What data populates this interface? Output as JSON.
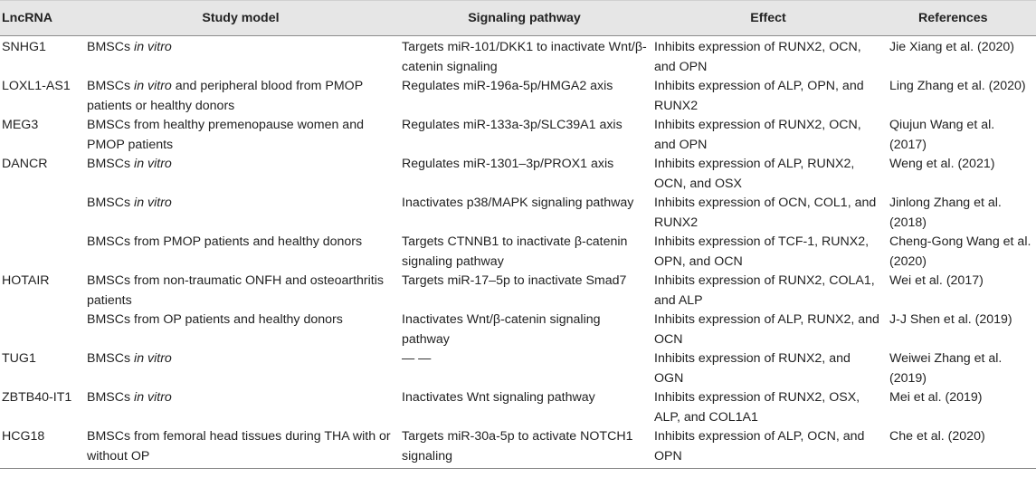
{
  "headers": {
    "lncrna": "LncRNA",
    "model": "Study model",
    "pathway": "Signaling pathway",
    "effect": "Effect",
    "refs": "References"
  },
  "rows": [
    {
      "lncrna": "SNHG1",
      "model": "BMSCs",
      "model_em": " in vitro",
      "model_rest": "",
      "pathway": "Targets miR-101/DKK1 to inactivate Wnt/β-catenin signaling",
      "effect": "Inhibits expression of RUNX2, OCN, and OPN",
      "ref": "Jie Xiang et al. (2020)"
    },
    {
      "lncrna": "LOXL1-AS1",
      "model": "BMSCs",
      "model_em": " in vitro",
      "model_rest": " and peripheral blood from PMOP patients or healthy donors",
      "pathway": "Regulates miR-196a-5p/HMGA2 axis",
      "effect": "Inhibits expression of ALP, OPN, and RUNX2",
      "ref": "Ling Zhang et al. (2020)"
    },
    {
      "lncrna": "MEG3",
      "model": "BMSCs from healthy premenopause women and PMOP patients",
      "model_em": "",
      "model_rest": "",
      "pathway": "Regulates miR-133a-3p/SLC39A1 axis",
      "effect": "Inhibits expression of RUNX2, OCN, and OPN",
      "ref": "Qiujun Wang et al. (2017)"
    },
    {
      "lncrna": "DANCR",
      "model": "BMSCs",
      "model_em": " in vitro",
      "model_rest": "",
      "pathway": "Regulates miR-1301–3p/PROX1 axis",
      "effect": "Inhibits expression of ALP, RUNX2, OCN, and OSX",
      "ref": "Weng et al. (2021)"
    },
    {
      "lncrna": "",
      "model": "BMSCs",
      "model_em": " in vitro",
      "model_rest": "",
      "pathway": "Inactivates p38/MAPK signaling pathway",
      "effect": "Inhibits expression of OCN, COL1, and RUNX2",
      "ref": "Jinlong Zhang et al. (2018)"
    },
    {
      "lncrna": "",
      "model": "BMSCs from PMOP patients and healthy donors",
      "model_em": "",
      "model_rest": "",
      "pathway": "Targets CTNNB1 to inactivate β-catenin signaling pathway",
      "effect": "Inhibits expression of TCF-1, RUNX2, OPN, and OCN",
      "ref": "Cheng-Gong Wang et al. (2020)"
    },
    {
      "lncrna": "HOTAIR",
      "model": "BMSCs from non-traumatic ONFH and osteoarthritis patients",
      "model_em": "",
      "model_rest": "",
      "pathway": "Targets miR-17–5p to inactivate Smad7",
      "effect": "Inhibits expression of RUNX2, COLA1, and ALP",
      "ref": "Wei et al. (2017)"
    },
    {
      "lncrna": "",
      "model": "BMSCs from OP patients and healthy donors",
      "model_em": "",
      "model_rest": "",
      "pathway": "Inactivates Wnt/β-catenin signaling pathway",
      "effect": "Inhibits expression of ALP, RUNX2, and OCN",
      "ref": "J-J Shen et al. (2019)"
    },
    {
      "lncrna": "TUG1",
      "model": "BMSCs",
      "model_em": " in vitro",
      "model_rest": "",
      "pathway": "— —",
      "effect": "Inhibits expression of RUNX2, and OGN",
      "ref": "Weiwei Zhang et al. (2019)"
    },
    {
      "lncrna": "ZBTB40-IT1",
      "model": "BMSCs",
      "model_em": " in vitro",
      "model_rest": "",
      "pathway": "Inactivates Wnt signaling pathway",
      "effect": "Inhibits expression of RUNX2, OSX, ALP, and COL1A1",
      "ref": "Mei et al. (2019)"
    },
    {
      "lncrna": "HCG18",
      "model": "BMSCs from femoral head tissues during THA with or without OP",
      "model_em": "",
      "model_rest": "",
      "pathway": "Targets miR-30a-5p to activate NOTCH1 signaling",
      "effect": "Inhibits expression of ALP, OCN, and OPN",
      "ref": "Che et al. (2020)"
    }
  ]
}
